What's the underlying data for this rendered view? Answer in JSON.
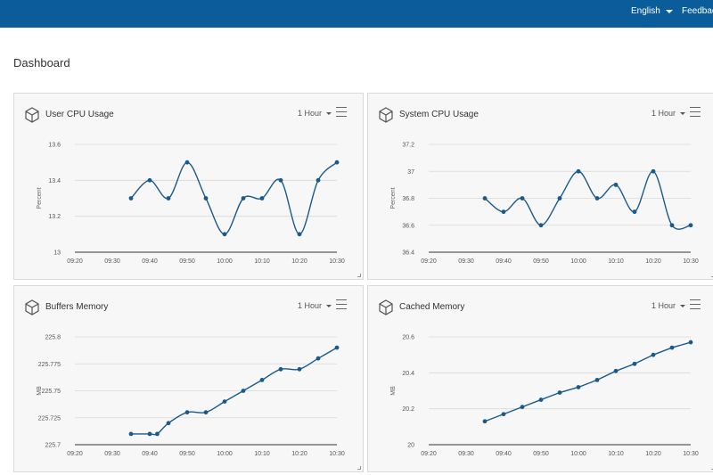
{
  "header": {
    "language": "English",
    "feedback": "Feedback",
    "bar_color": "#0b5c9a"
  },
  "page_title": "Dashboard",
  "panels": [
    {
      "title": "User CPU Usage",
      "range": "1 Hour",
      "icon": "cube-icon"
    },
    {
      "title": "System CPU Usage",
      "range": "1 Hour",
      "icon": "cube-icon"
    },
    {
      "title": "Buffers Memory",
      "range": "1 Hour",
      "icon": "cube-icon"
    },
    {
      "title": "Cached Memory",
      "range": "1 Hour",
      "icon": "cube-icon"
    }
  ],
  "chart_data": [
    {
      "type": "line",
      "title": "User CPU Usage",
      "ylabel": "Percent",
      "yticks": [
        "13",
        "13.2",
        "13.4",
        "13.6"
      ],
      "ylim": [
        13,
        13.6
      ],
      "xticks": [
        "09:20",
        "09:30",
        "09:40",
        "09:50",
        "10:00",
        "10:10",
        "10:20",
        "10:30"
      ],
      "x": [
        "09:35",
        "09:40",
        "09:45",
        "09:50",
        "09:55",
        "10:00",
        "10:05",
        "10:10",
        "10:15",
        "10:20",
        "10:25",
        "10:30"
      ],
      "values": [
        13.3,
        13.4,
        13.3,
        13.5,
        13.3,
        13.1,
        13.3,
        13.3,
        13.4,
        13.1,
        13.4,
        13.5
      ],
      "smooth": true,
      "color": "#1a5a8a",
      "grid": true
    },
    {
      "type": "line",
      "title": "System CPU Usage",
      "ylabel": "Percent",
      "yticks": [
        "36.4",
        "36.6",
        "36.8",
        "37",
        "37.2"
      ],
      "ylim": [
        36.4,
        37.2
      ],
      "xticks": [
        "09:20",
        "09:30",
        "09:40",
        "09:50",
        "10:00",
        "10:10",
        "10:20",
        "10:30"
      ],
      "x": [
        "09:35",
        "09:40",
        "09:45",
        "09:50",
        "09:55",
        "10:00",
        "10:05",
        "10:10",
        "10:15",
        "10:20",
        "10:25",
        "10:30"
      ],
      "values": [
        36.8,
        36.7,
        36.8,
        36.6,
        36.8,
        37.0,
        36.8,
        36.9,
        36.7,
        37.0,
        36.6,
        36.6
      ],
      "smooth": true,
      "color": "#1a5a8a",
      "grid": true
    },
    {
      "type": "line",
      "title": "Buffers Memory",
      "ylabel": "MB",
      "yticks": [
        "225.7",
        "225.725",
        "225.75",
        "225.775",
        "225.8"
      ],
      "ylim": [
        225.7,
        225.8
      ],
      "xticks": [
        "09:20",
        "09:30",
        "09:40",
        "09:50",
        "10:00",
        "10:10",
        "10:20",
        "10:30"
      ],
      "x": [
        "09:35",
        "09:40",
        "09:42",
        "09:45",
        "09:50",
        "09:55",
        "10:00",
        "10:05",
        "10:10",
        "10:15",
        "10:20",
        "10:25",
        "10:30"
      ],
      "values": [
        225.71,
        225.71,
        225.71,
        225.72,
        225.73,
        225.73,
        225.74,
        225.75,
        225.76,
        225.77,
        225.77,
        225.78,
        225.79
      ],
      "smooth": true,
      "color": "#1a5a8a",
      "grid": true
    },
    {
      "type": "line",
      "title": "Cached Memory",
      "ylabel": "MB",
      "yticks": [
        "20",
        "20.2",
        "20.4",
        "20.6"
      ],
      "ylim": [
        20,
        20.6
      ],
      "xticks": [
        "09:20",
        "09:30",
        "09:40",
        "09:50",
        "10:00",
        "10:10",
        "10:20",
        "10:30"
      ],
      "x": [
        "09:35",
        "09:40",
        "09:45",
        "09:50",
        "09:55",
        "10:00",
        "10:05",
        "10:10",
        "10:15",
        "10:20",
        "10:25",
        "10:30"
      ],
      "values": [
        20.13,
        20.17,
        20.21,
        20.25,
        20.29,
        20.32,
        20.36,
        20.41,
        20.45,
        20.5,
        20.54,
        20.57
      ],
      "smooth": false,
      "color": "#1a5a8a",
      "grid": true
    }
  ]
}
